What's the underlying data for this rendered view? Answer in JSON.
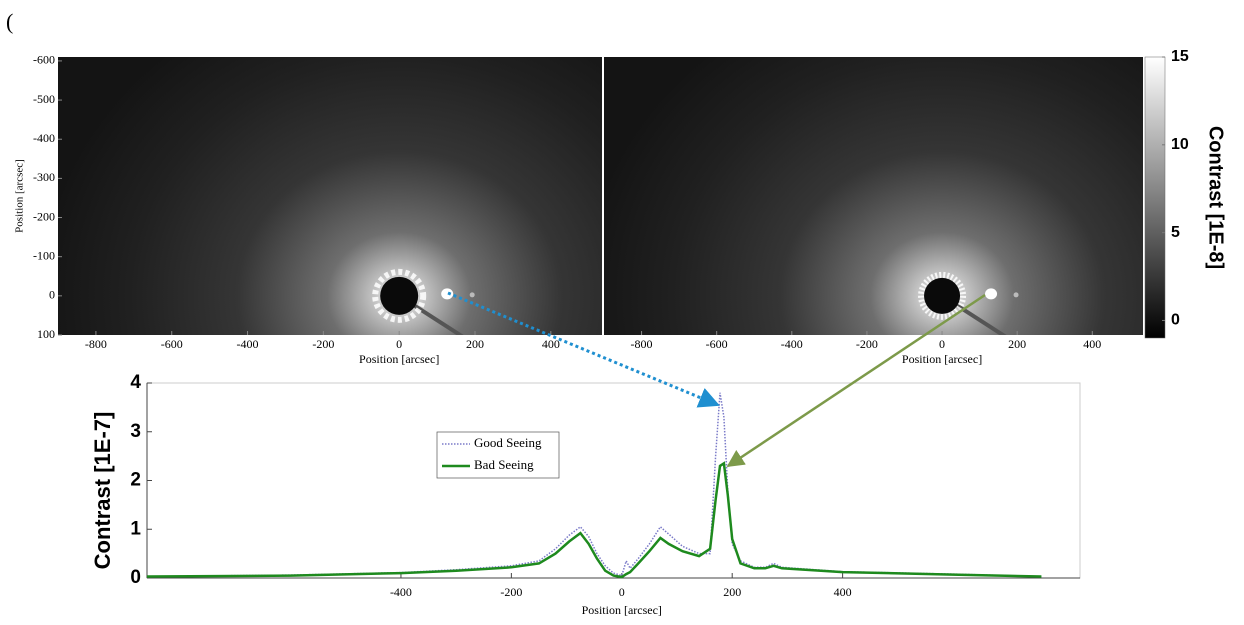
{
  "panel_marker": "(",
  "chart_data": [
    {
      "type": "image",
      "xlabel": "Position [arcsec]",
      "ylabel": "Position [arcsec]",
      "xlim": [
        -900,
        535
      ],
      "ylim": [
        -610,
        100
      ],
      "xticks": [
        -800,
        -600,
        -400,
        -200,
        0,
        200,
        400
      ],
      "yticks": [
        -600,
        -500,
        -400,
        -300,
        -200,
        -100,
        0,
        100
      ]
    },
    {
      "type": "image",
      "xlabel": "Position [arcsec]",
      "xlim": [
        -900,
        535
      ],
      "ylim": [
        -610,
        100
      ],
      "xticks": [
        -800,
        -600,
        -400,
        -200,
        0,
        200,
        400
      ]
    },
    {
      "type": "colorbar",
      "label": "Contrast [1E-8]",
      "lim": [
        -1,
        15
      ],
      "ticks": [
        0,
        5,
        10,
        15
      ]
    },
    {
      "type": "line",
      "xlabel": "Position [arcsec]",
      "ylabel": "Contrast [1E-7]",
      "xlim": [
        -860,
        830
      ],
      "ylim": [
        0,
        4
      ],
      "xticks": [
        -400,
        -200,
        0,
        200,
        400
      ],
      "yticks": [
        0,
        1,
        2,
        3,
        4
      ],
      "legend": "upper-left",
      "x": [
        -860,
        -600,
        -400,
        -300,
        -200,
        -150,
        -120,
        -95,
        -75,
        -60,
        -45,
        -30,
        -15,
        0,
        8,
        15,
        30,
        50,
        70,
        85,
        110,
        140,
        160,
        170,
        178,
        185,
        192,
        200,
        215,
        240,
        260,
        275,
        290,
        400,
        600,
        760
      ],
      "series": [
        {
          "name": "Good Seeing",
          "color": "#7a7ac8",
          "style": "dotted",
          "values": [
            0.03,
            0.06,
            0.11,
            0.17,
            0.25,
            0.35,
            0.6,
            0.88,
            1.05,
            0.85,
            0.5,
            0.25,
            0.1,
            0.05,
            0.35,
            0.2,
            0.4,
            0.7,
            1.05,
            0.9,
            0.65,
            0.5,
            0.5,
            2.5,
            3.8,
            3.3,
            1.8,
            0.7,
            0.35,
            0.22,
            0.22,
            0.3,
            0.22,
            0.13,
            0.08,
            0.03
          ]
        },
        {
          "name": "Bad Seeing",
          "color": "#1e8a1e",
          "style": "solid",
          "values": [
            0.03,
            0.05,
            0.1,
            0.15,
            0.22,
            0.3,
            0.5,
            0.75,
            0.92,
            0.7,
            0.4,
            0.15,
            0.05,
            0.02,
            0.08,
            0.12,
            0.3,
            0.55,
            0.82,
            0.7,
            0.55,
            0.45,
            0.6,
            1.6,
            2.3,
            2.35,
            1.7,
            0.8,
            0.3,
            0.2,
            0.2,
            0.25,
            0.2,
            0.12,
            0.07,
            0.03
          ]
        }
      ]
    }
  ]
}
